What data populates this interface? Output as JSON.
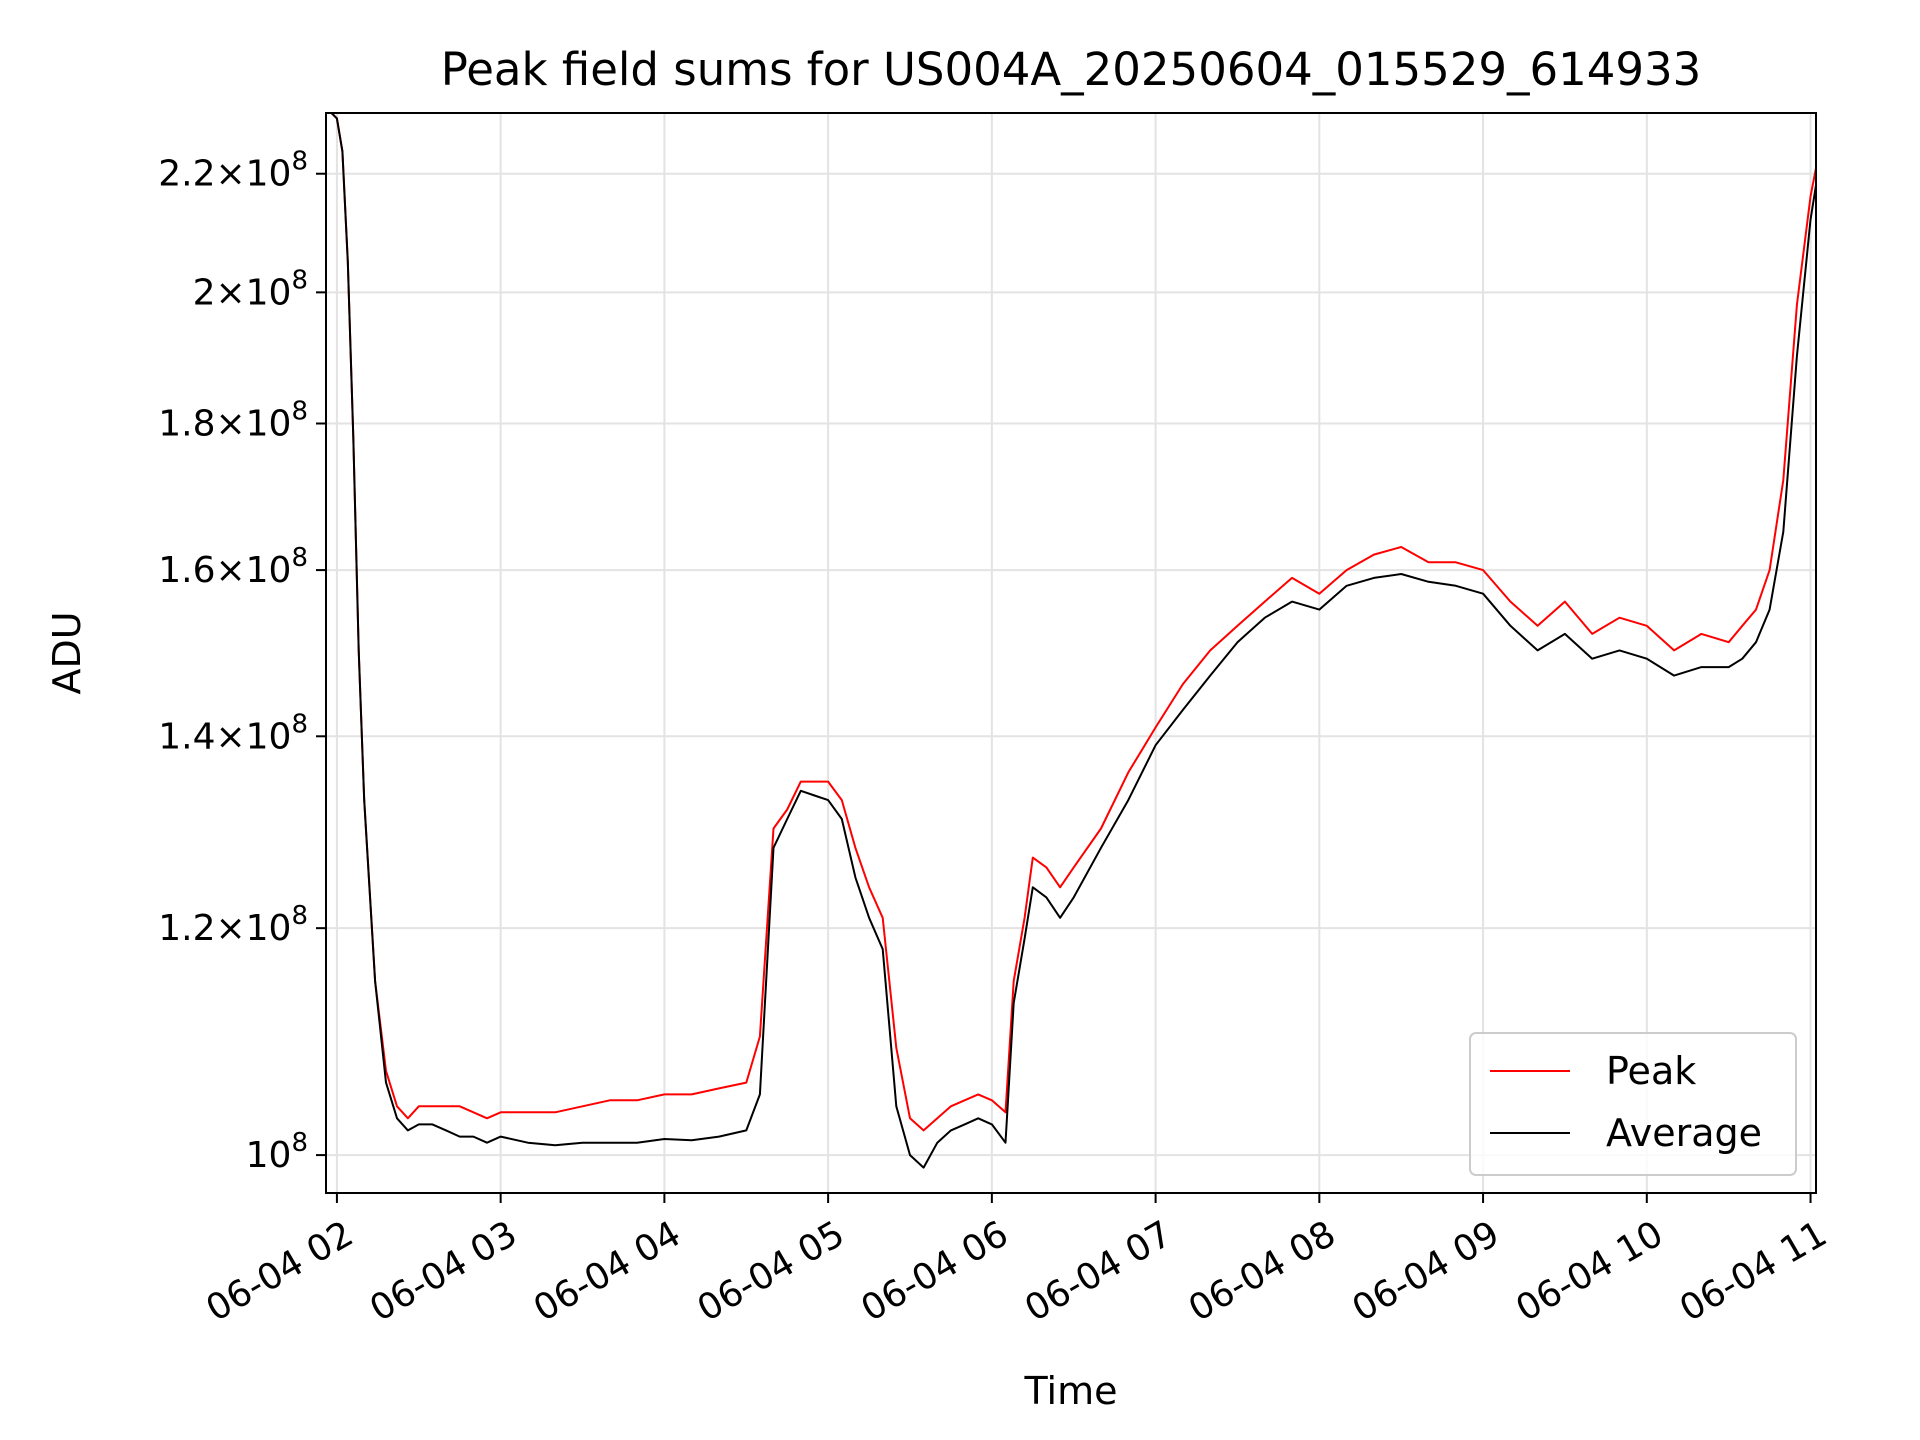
{
  "chart_data": {
    "type": "line",
    "title": "Peak field sums for US004A_20250604_015529_614933",
    "xlabel": "Time",
    "ylabel": "ADU",
    "x_ticks": [
      "06-04 02",
      "06-04 03",
      "06-04 04",
      "06-04 05",
      "06-04 06",
      "06-04 07",
      "06-04 08",
      "06-04 09",
      "06-04 10",
      "06-04 11"
    ],
    "y_ticks": [
      {
        "value": 100000000,
        "mantissa": "",
        "exp": "8"
      },
      {
        "value": 120000000,
        "mantissa": "1.2",
        "exp": "8"
      },
      {
        "value": 140000000,
        "mantissa": "1.4",
        "exp": "8"
      },
      {
        "value": 160000000,
        "mantissa": "1.6",
        "exp": "8"
      },
      {
        "value": 180000000,
        "mantissa": "1.8",
        "exp": "8"
      },
      {
        "value": 200000000,
        "mantissa": "2",
        "exp": "8"
      },
      {
        "value": 220000000,
        "mantissa": "2.2",
        "exp": "8"
      }
    ],
    "y_scale": "log",
    "xlim": [
      "06-04 01:56",
      "06-04 11:02"
    ],
    "ylim": [
      97000000,
      231000000
    ],
    "grid": true,
    "legend_position": "lower right",
    "series": [
      {
        "name": "Peak",
        "color": "#ff0000",
        "x": [
          "01:56",
          "01:58",
          "02:00",
          "02:02",
          "02:04",
          "02:06",
          "02:08",
          "02:10",
          "02:14",
          "02:18",
          "02:22",
          "02:26",
          "02:30",
          "02:35",
          "02:40",
          "02:45",
          "02:50",
          "02:55",
          "03:00",
          "03:10",
          "03:20",
          "03:30",
          "03:40",
          "03:50",
          "04:00",
          "04:10",
          "04:20",
          "04:30",
          "04:35",
          "04:40",
          "04:45",
          "04:50",
          "04:55",
          "05:00",
          "05:05",
          "05:10",
          "05:15",
          "05:20",
          "05:25",
          "05:30",
          "05:35",
          "05:40",
          "05:45",
          "05:50",
          "05:55",
          "06:00",
          "06:05",
          "06:08",
          "06:12",
          "06:15",
          "06:20",
          "06:25",
          "06:30",
          "06:40",
          "06:50",
          "07:00",
          "07:10",
          "07:20",
          "07:30",
          "07:40",
          "07:50",
          "08:00",
          "08:10",
          "08:20",
          "08:30",
          "08:40",
          "08:50",
          "09:00",
          "09:10",
          "09:20",
          "09:30",
          "09:40",
          "09:50",
          "10:00",
          "10:10",
          "10:20",
          "10:30",
          "10:35",
          "10:40",
          "10:45",
          "10:50",
          "10:55",
          "11:00",
          "11:02"
        ],
        "y": [
          231000000,
          231000000,
          230000000,
          224000000,
          205000000,
          178000000,
          150000000,
          133000000,
          115000000,
          107000000,
          104000000,
          103000000,
          104000000,
          104000000,
          104000000,
          104000000,
          103500000,
          103000000,
          103500000,
          103500000,
          103500000,
          104000000,
          104500000,
          104500000,
          105000000,
          105000000,
          105500000,
          106000000,
          110000000,
          130000000,
          132000000,
          135000000,
          135000000,
          135000000,
          133000000,
          128000000,
          124000000,
          121000000,
          109000000,
          103000000,
          102000000,
          103000000,
          104000000,
          104500000,
          105000000,
          104500000,
          103500000,
          115000000,
          121000000,
          127000000,
          126000000,
          124000000,
          126000000,
          130000000,
          136000000,
          141000000,
          146000000,
          150000000,
          153000000,
          156000000,
          159000000,
          157000000,
          160000000,
          162000000,
          163000000,
          161000000,
          161000000,
          160000000,
          156000000,
          153000000,
          156000000,
          152000000,
          154000000,
          153000000,
          150000000,
          152000000,
          151000000,
          153000000,
          155000000,
          160000000,
          172000000,
          198000000,
          216000000,
          221000000
        ]
      },
      {
        "name": "Average",
        "color": "#000000",
        "x": [
          "01:56",
          "01:58",
          "02:00",
          "02:02",
          "02:04",
          "02:06",
          "02:08",
          "02:10",
          "02:14",
          "02:18",
          "02:22",
          "02:26",
          "02:30",
          "02:35",
          "02:40",
          "02:45",
          "02:50",
          "02:55",
          "03:00",
          "03:10",
          "03:20",
          "03:30",
          "03:40",
          "03:50",
          "04:00",
          "04:10",
          "04:20",
          "04:30",
          "04:35",
          "04:40",
          "04:45",
          "04:50",
          "04:55",
          "05:00",
          "05:05",
          "05:10",
          "05:15",
          "05:20",
          "05:25",
          "05:30",
          "05:35",
          "05:40",
          "05:45",
          "05:50",
          "05:55",
          "06:00",
          "06:05",
          "06:08",
          "06:12",
          "06:15",
          "06:20",
          "06:25",
          "06:30",
          "06:40",
          "06:50",
          "07:00",
          "07:10",
          "07:20",
          "07:30",
          "07:40",
          "07:50",
          "08:00",
          "08:10",
          "08:20",
          "08:30",
          "08:40",
          "08:50",
          "09:00",
          "09:10",
          "09:20",
          "09:30",
          "09:40",
          "09:50",
          "10:00",
          "10:10",
          "10:20",
          "10:30",
          "10:35",
          "10:40",
          "10:45",
          "10:50",
          "10:55",
          "11:00",
          "11:02"
        ],
        "y": [
          231000000,
          231000000,
          230000000,
          224000000,
          205000000,
          178000000,
          150000000,
          133000000,
          115000000,
          106000000,
          103000000,
          102000000,
          102500000,
          102500000,
          102000000,
          101500000,
          101500000,
          101000000,
          101500000,
          101000000,
          100800000,
          101000000,
          101000000,
          101000000,
          101300000,
          101200000,
          101500000,
          102000000,
          105000000,
          128000000,
          131000000,
          134000000,
          133500000,
          133000000,
          131000000,
          125000000,
          121000000,
          118000000,
          104000000,
          100000000,
          99000000,
          101000000,
          102000000,
          102500000,
          103000000,
          102500000,
          101000000,
          113000000,
          119000000,
          124000000,
          123000000,
          121000000,
          123000000,
          128000000,
          133000000,
          139000000,
          143000000,
          147000000,
          151000000,
          154000000,
          156000000,
          155000000,
          158000000,
          159000000,
          159500000,
          158500000,
          158000000,
          157000000,
          153000000,
          150000000,
          152000000,
          149000000,
          150000000,
          149000000,
          147000000,
          148000000,
          148000000,
          149000000,
          151000000,
          155000000,
          165000000,
          190000000,
          212000000,
          218000000
        ]
      }
    ]
  }
}
